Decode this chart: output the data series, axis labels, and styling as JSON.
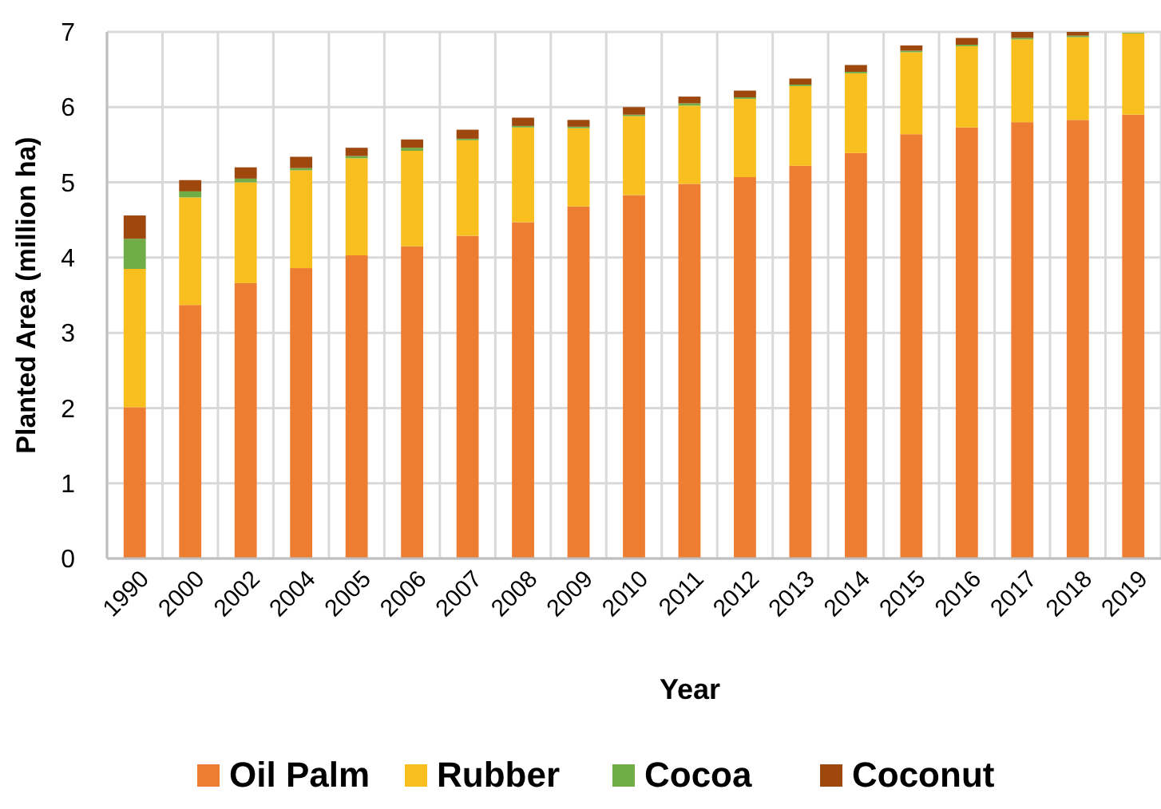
{
  "chart_data": {
    "type": "bar",
    "stacked": true,
    "xlabel": "Year",
    "ylabel": "Planted Area (million ha)",
    "categories": [
      "1990",
      "2000",
      "2002",
      "2004",
      "2005",
      "2006",
      "2007",
      "2008",
      "2009",
      "2010",
      "2011",
      "2012",
      "2013",
      "2014",
      "2015",
      "2016",
      "2017",
      "2018",
      "2019"
    ],
    "series": [
      {
        "name": "Oil Palm",
        "color": "#ed7d31",
        "values": [
          2.01,
          3.37,
          3.66,
          3.86,
          4.03,
          4.15,
          4.29,
          4.47,
          4.68,
          4.83,
          4.98,
          5.07,
          5.22,
          5.39,
          5.64,
          5.73,
          5.8,
          5.83,
          5.9
        ]
      },
      {
        "name": "Rubber",
        "color": "#f9bf1f",
        "values": [
          1.84,
          1.43,
          1.34,
          1.3,
          1.29,
          1.27,
          1.27,
          1.26,
          1.04,
          1.05,
          1.04,
          1.04,
          1.06,
          1.06,
          1.09,
          1.08,
          1.1,
          1.1,
          1.08
        ]
      },
      {
        "name": "Cocoa",
        "color": "#70ad47",
        "values": [
          0.4,
          0.08,
          0.05,
          0.03,
          0.03,
          0.04,
          0.02,
          0.02,
          0.02,
          0.02,
          0.03,
          0.02,
          0.02,
          0.02,
          0.02,
          0.02,
          0.02,
          0.02,
          0.01
        ]
      },
      {
        "name": "Coconut",
        "color": "#9e480e",
        "values": [
          0.31,
          0.15,
          0.15,
          0.15,
          0.11,
          0.11,
          0.12,
          0.11,
          0.09,
          0.1,
          0.09,
          0.09,
          0.08,
          0.09,
          0.07,
          0.09,
          0.08,
          0.05,
          null
        ]
      }
    ],
    "ylim": [
      0,
      7
    ],
    "yticks": [
      0,
      1,
      2,
      3,
      4,
      5,
      6,
      7
    ],
    "grid": true,
    "legend": "bottom"
  }
}
